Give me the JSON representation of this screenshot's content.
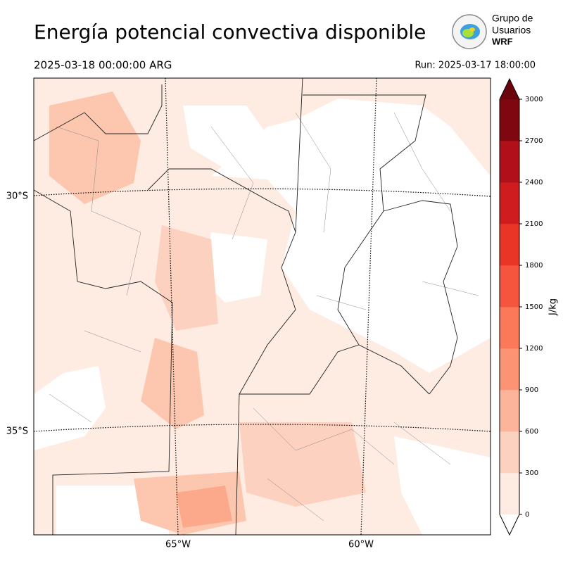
{
  "header": {
    "title": "Energía potencial convectiva disponible",
    "valid_time": "2025-03-18 00:00:00 ARG",
    "run": "Run: 2025-03-17 18:00:00"
  },
  "logo": {
    "lines": [
      "Grupo de",
      "Usuarios",
      "WRF"
    ]
  },
  "map": {
    "lat_labels": [
      "30°S",
      "35°S"
    ],
    "lon_labels": [
      "65°W",
      "60°W"
    ]
  },
  "colorbar": {
    "label": "J/kg",
    "ticks": [
      0,
      300,
      600,
      900,
      1200,
      1500,
      1800,
      2100,
      2400,
      2700,
      3000
    ],
    "colors": [
      "#feebe2",
      "#fdd1bf",
      "#fcb59a",
      "#fc9373",
      "#fb7858",
      "#f5553c",
      "#e93526",
      "#cf1c1e",
      "#b01118",
      "#7f0710"
    ],
    "over_color": "#6a040d",
    "under_color": "#ffffff"
  }
}
